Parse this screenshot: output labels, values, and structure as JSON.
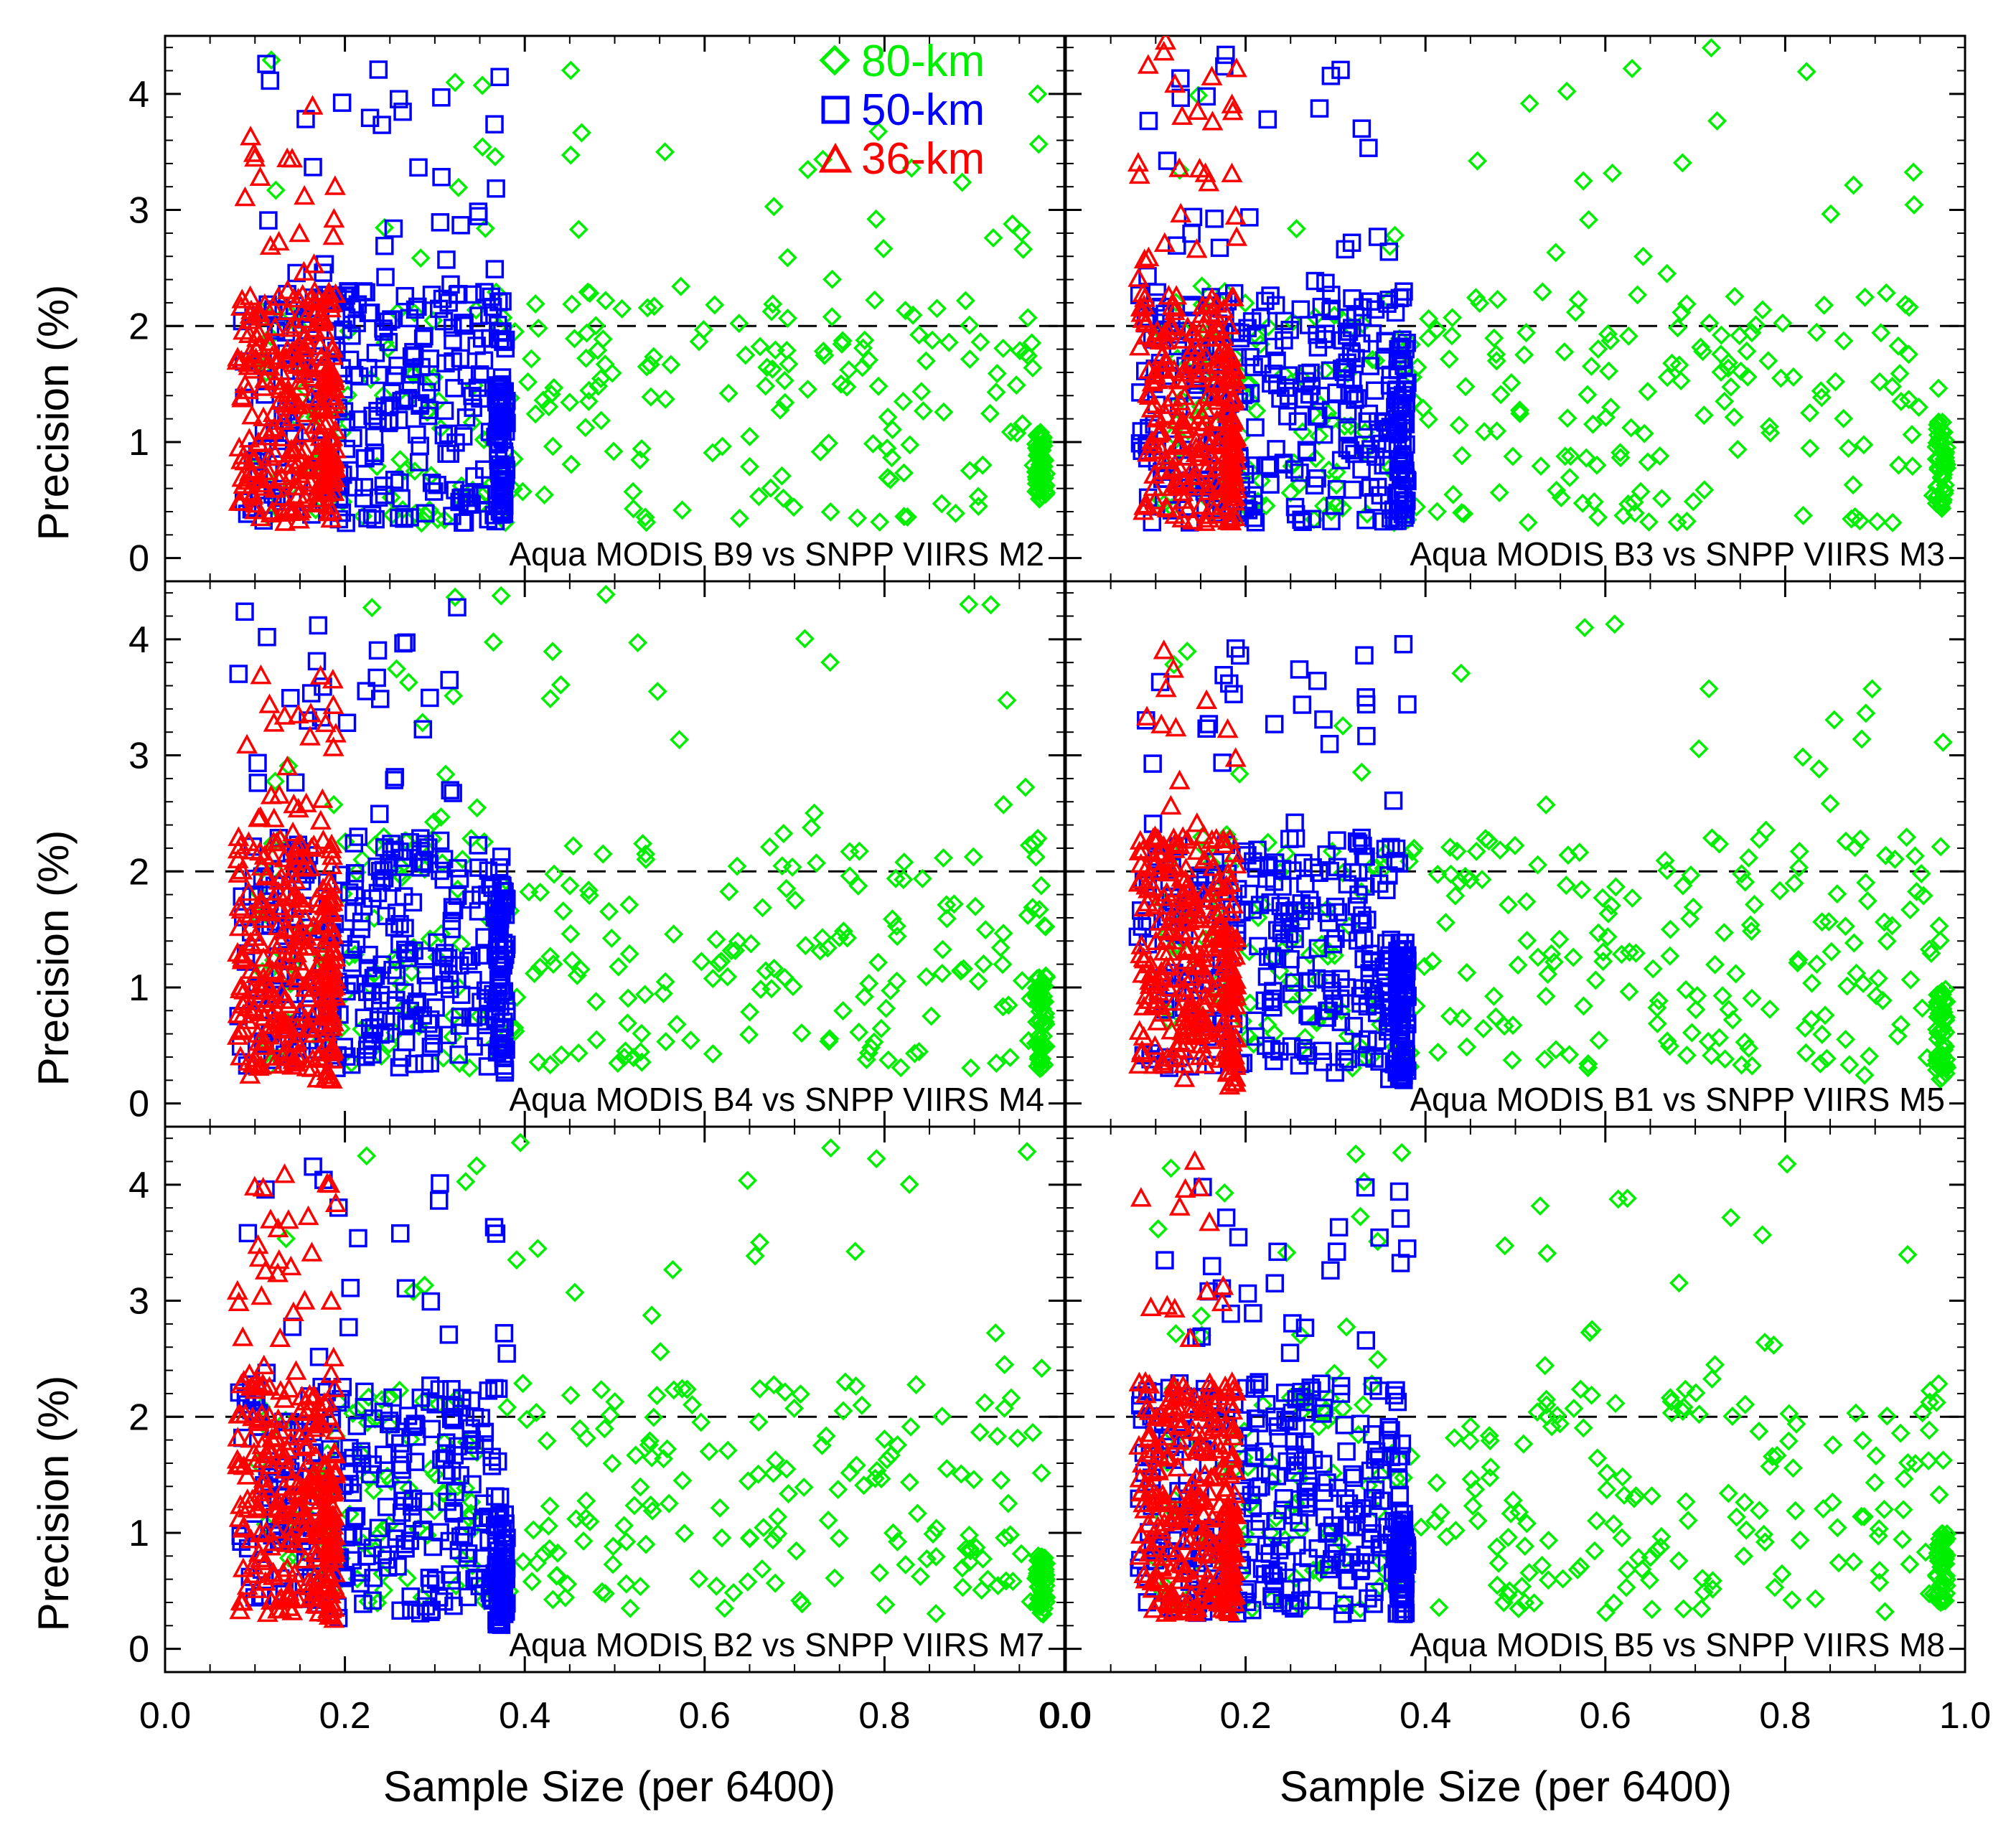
{
  "figure": {
    "xlabel": "Sample Size (per 6400)",
    "ylabel": "Precision (%)",
    "xlim": [
      0.0,
      1.0
    ],
    "ylim": [
      -0.2,
      4.5
    ],
    "x_ticks": [
      "0.0",
      "0.2",
      "0.4",
      "0.6",
      "0.8",
      "1.0"
    ],
    "x_ticks_left": [
      "0.0",
      "0.2",
      "0.4",
      "0.6",
      "0.8",
      "0.0"
    ],
    "y_ticks": [
      "0",
      "1",
      "2",
      "3",
      "4"
    ],
    "reference_line": 2
  },
  "legend": {
    "placement": "top-right of top-left panel",
    "entries": [
      {
        "label": "80-km",
        "color": "#00ee00",
        "marker": "diamond"
      },
      {
        "label": "50-km",
        "color": "#0000ff",
        "marker": "square"
      },
      {
        "label": "36-km",
        "color": "#ff0000",
        "marker": "triangle"
      }
    ]
  },
  "colors": {
    "80km": "#00ee00",
    "50km": "#0000ff",
    "36km": "#ff0000",
    "axis": "#000000"
  },
  "chart_data": [
    {
      "type": "scatter",
      "title": "Aqua MODIS B9 vs SNPP VIIRS M2",
      "xlabel": "",
      "ylabel": "Precision (%)",
      "xlim": [
        0.0,
        1.0
      ],
      "ylim": [
        -0.2,
        4.5
      ],
      "reference_line": 2,
      "series": [
        {
          "name": "80-km",
          "cluster": [
            [
              0.18,
              2.6,
              0.6,
              0.9,
              0.8,
              0.35
            ]
          ],
          "x_range": [
            0.1,
            0.98
          ],
          "y_range": [
            0.3,
            4.3
          ],
          "dense_edge_x": 0.98,
          "dense_edge_y": [
            0.5,
            1.1
          ]
        },
        {
          "name": "50-km",
          "x_range": [
            0.08,
            0.38
          ],
          "y_range": [
            0.3,
            4.3
          ],
          "dense_edge_x": 0.38,
          "dense_edge_y": [
            0.35,
            1.5
          ]
        },
        {
          "name": "36-km",
          "x_range": [
            0.08,
            0.19
          ],
          "y_range": [
            0.3,
            4.1
          ],
          "dense_edge_x": 0.19,
          "dense_edge_y": [
            0.5,
            1.6
          ]
        }
      ]
    },
    {
      "type": "scatter",
      "title": "Aqua MODIS B3 vs SNPP VIIRS M3",
      "xlabel": "",
      "ylabel": "",
      "xlim": [
        0.0,
        1.0
      ],
      "ylim": [
        -0.2,
        4.5
      ],
      "reference_line": 2,
      "series": [
        {
          "name": "80-km",
          "x_range": [
            0.1,
            0.98
          ],
          "y_range": [
            0.3,
            4.4
          ],
          "dense_edge_x": 0.98,
          "dense_edge_y": [
            0.4,
            1.2
          ]
        },
        {
          "name": "50-km",
          "x_range": [
            0.08,
            0.38
          ],
          "y_range": [
            0.3,
            4.4
          ],
          "dense_edge_x": 0.38,
          "dense_edge_y": [
            0.3,
            1.9
          ]
        },
        {
          "name": "36-km",
          "x_range": [
            0.08,
            0.19
          ],
          "y_range": [
            0.3,
            4.5
          ],
          "dense_edge_x": 0.19,
          "dense_edge_y": [
            0.3,
            1.8
          ]
        }
      ]
    },
    {
      "type": "scatter",
      "title": "Aqua MODIS B4 vs SNPP VIIRS M4",
      "xlabel": "",
      "ylabel": "Precision (%)",
      "xlim": [
        0.0,
        1.0
      ],
      "ylim": [
        -0.2,
        4.5
      ],
      "reference_line": 2,
      "series": [
        {
          "name": "80-km",
          "x_range": [
            0.1,
            0.98
          ],
          "y_range": [
            0.3,
            4.4
          ],
          "dense_edge_x": 0.98,
          "dense_edge_y": [
            0.3,
            1.1
          ]
        },
        {
          "name": "50-km",
          "x_range": [
            0.08,
            0.38
          ],
          "y_range": [
            0.3,
            4.4
          ],
          "dense_edge_x": 0.38,
          "dense_edge_y": [
            0.25,
            1.9
          ]
        },
        {
          "name": "36-km",
          "x_range": [
            0.08,
            0.19
          ],
          "y_range": [
            0.2,
            3.8
          ],
          "dense_edge_x": 0.19,
          "dense_edge_y": [
            0.2,
            1.9
          ]
        }
      ]
    },
    {
      "type": "scatter",
      "title": "Aqua MODIS B1 vs SNPP VIIRS M5",
      "xlabel": "",
      "ylabel": "",
      "xlim": [
        0.0,
        1.0
      ],
      "ylim": [
        -0.2,
        4.5
      ],
      "reference_line": 2,
      "series": [
        {
          "name": "80-km",
          "x_range": [
            0.1,
            0.98
          ],
          "y_range": [
            0.2,
            4.4
          ],
          "dense_edge_x": 0.98,
          "dense_edge_y": [
            0.2,
            1.0
          ]
        },
        {
          "name": "50-km",
          "x_range": [
            0.08,
            0.38
          ],
          "y_range": [
            0.2,
            4.0
          ],
          "dense_edge_x": 0.38,
          "dense_edge_y": [
            0.2,
            1.4
          ]
        },
        {
          "name": "36-km",
          "x_range": [
            0.08,
            0.19
          ],
          "y_range": [
            0.1,
            4.0
          ],
          "dense_edge_x": 0.19,
          "dense_edge_y": [
            0.1,
            1.5
          ]
        }
      ]
    },
    {
      "type": "scatter",
      "title": "Aqua MODIS B2 vs SNPP VIIRS M7",
      "xlabel": "Sample Size (per 6400)",
      "ylabel": "Precision (%)",
      "xlim": [
        0.0,
        1.0
      ],
      "ylim": [
        -0.2,
        4.5
      ],
      "reference_line": 2,
      "series": [
        {
          "name": "80-km",
          "x_range": [
            0.1,
            0.98
          ],
          "y_range": [
            0.3,
            4.4
          ],
          "dense_edge_x": 0.98,
          "dense_edge_y": [
            0.3,
            0.8
          ]
        },
        {
          "name": "50-km",
          "x_range": [
            0.08,
            0.38
          ],
          "y_range": [
            0.2,
            4.2
          ],
          "dense_edge_x": 0.38,
          "dense_edge_y": [
            0.2,
            1.2
          ]
        },
        {
          "name": "36-km",
          "x_range": [
            0.08,
            0.19
          ],
          "y_range": [
            0.2,
            4.1
          ],
          "dense_edge_x": 0.19,
          "dense_edge_y": [
            0.2,
            1.5
          ]
        }
      ]
    },
    {
      "type": "scatter",
      "title": "Aqua MODIS B5 vs SNPP VIIRS M8",
      "xlabel": "Sample Size (per 6400)",
      "ylabel": "",
      "xlim": [
        0.0,
        1.0
      ],
      "ylim": [
        -0.2,
        4.5
      ],
      "reference_line": 2,
      "series": [
        {
          "name": "80-km",
          "x_range": [
            0.1,
            0.98
          ],
          "y_range": [
            0.3,
            4.3
          ],
          "dense_edge_x": 0.98,
          "dense_edge_y": [
            0.4,
            1.0
          ]
        },
        {
          "name": "50-km",
          "x_range": [
            0.08,
            0.38
          ],
          "y_range": [
            0.3,
            4.1
          ],
          "dense_edge_x": 0.38,
          "dense_edge_y": [
            0.3,
            1.2
          ]
        },
        {
          "name": "36-km",
          "x_range": [
            0.08,
            0.19
          ],
          "y_range": [
            0.3,
            4.5
          ],
          "dense_edge_x": 0.19,
          "dense_edge_y": [
            0.3,
            1.3
          ]
        }
      ]
    }
  ]
}
